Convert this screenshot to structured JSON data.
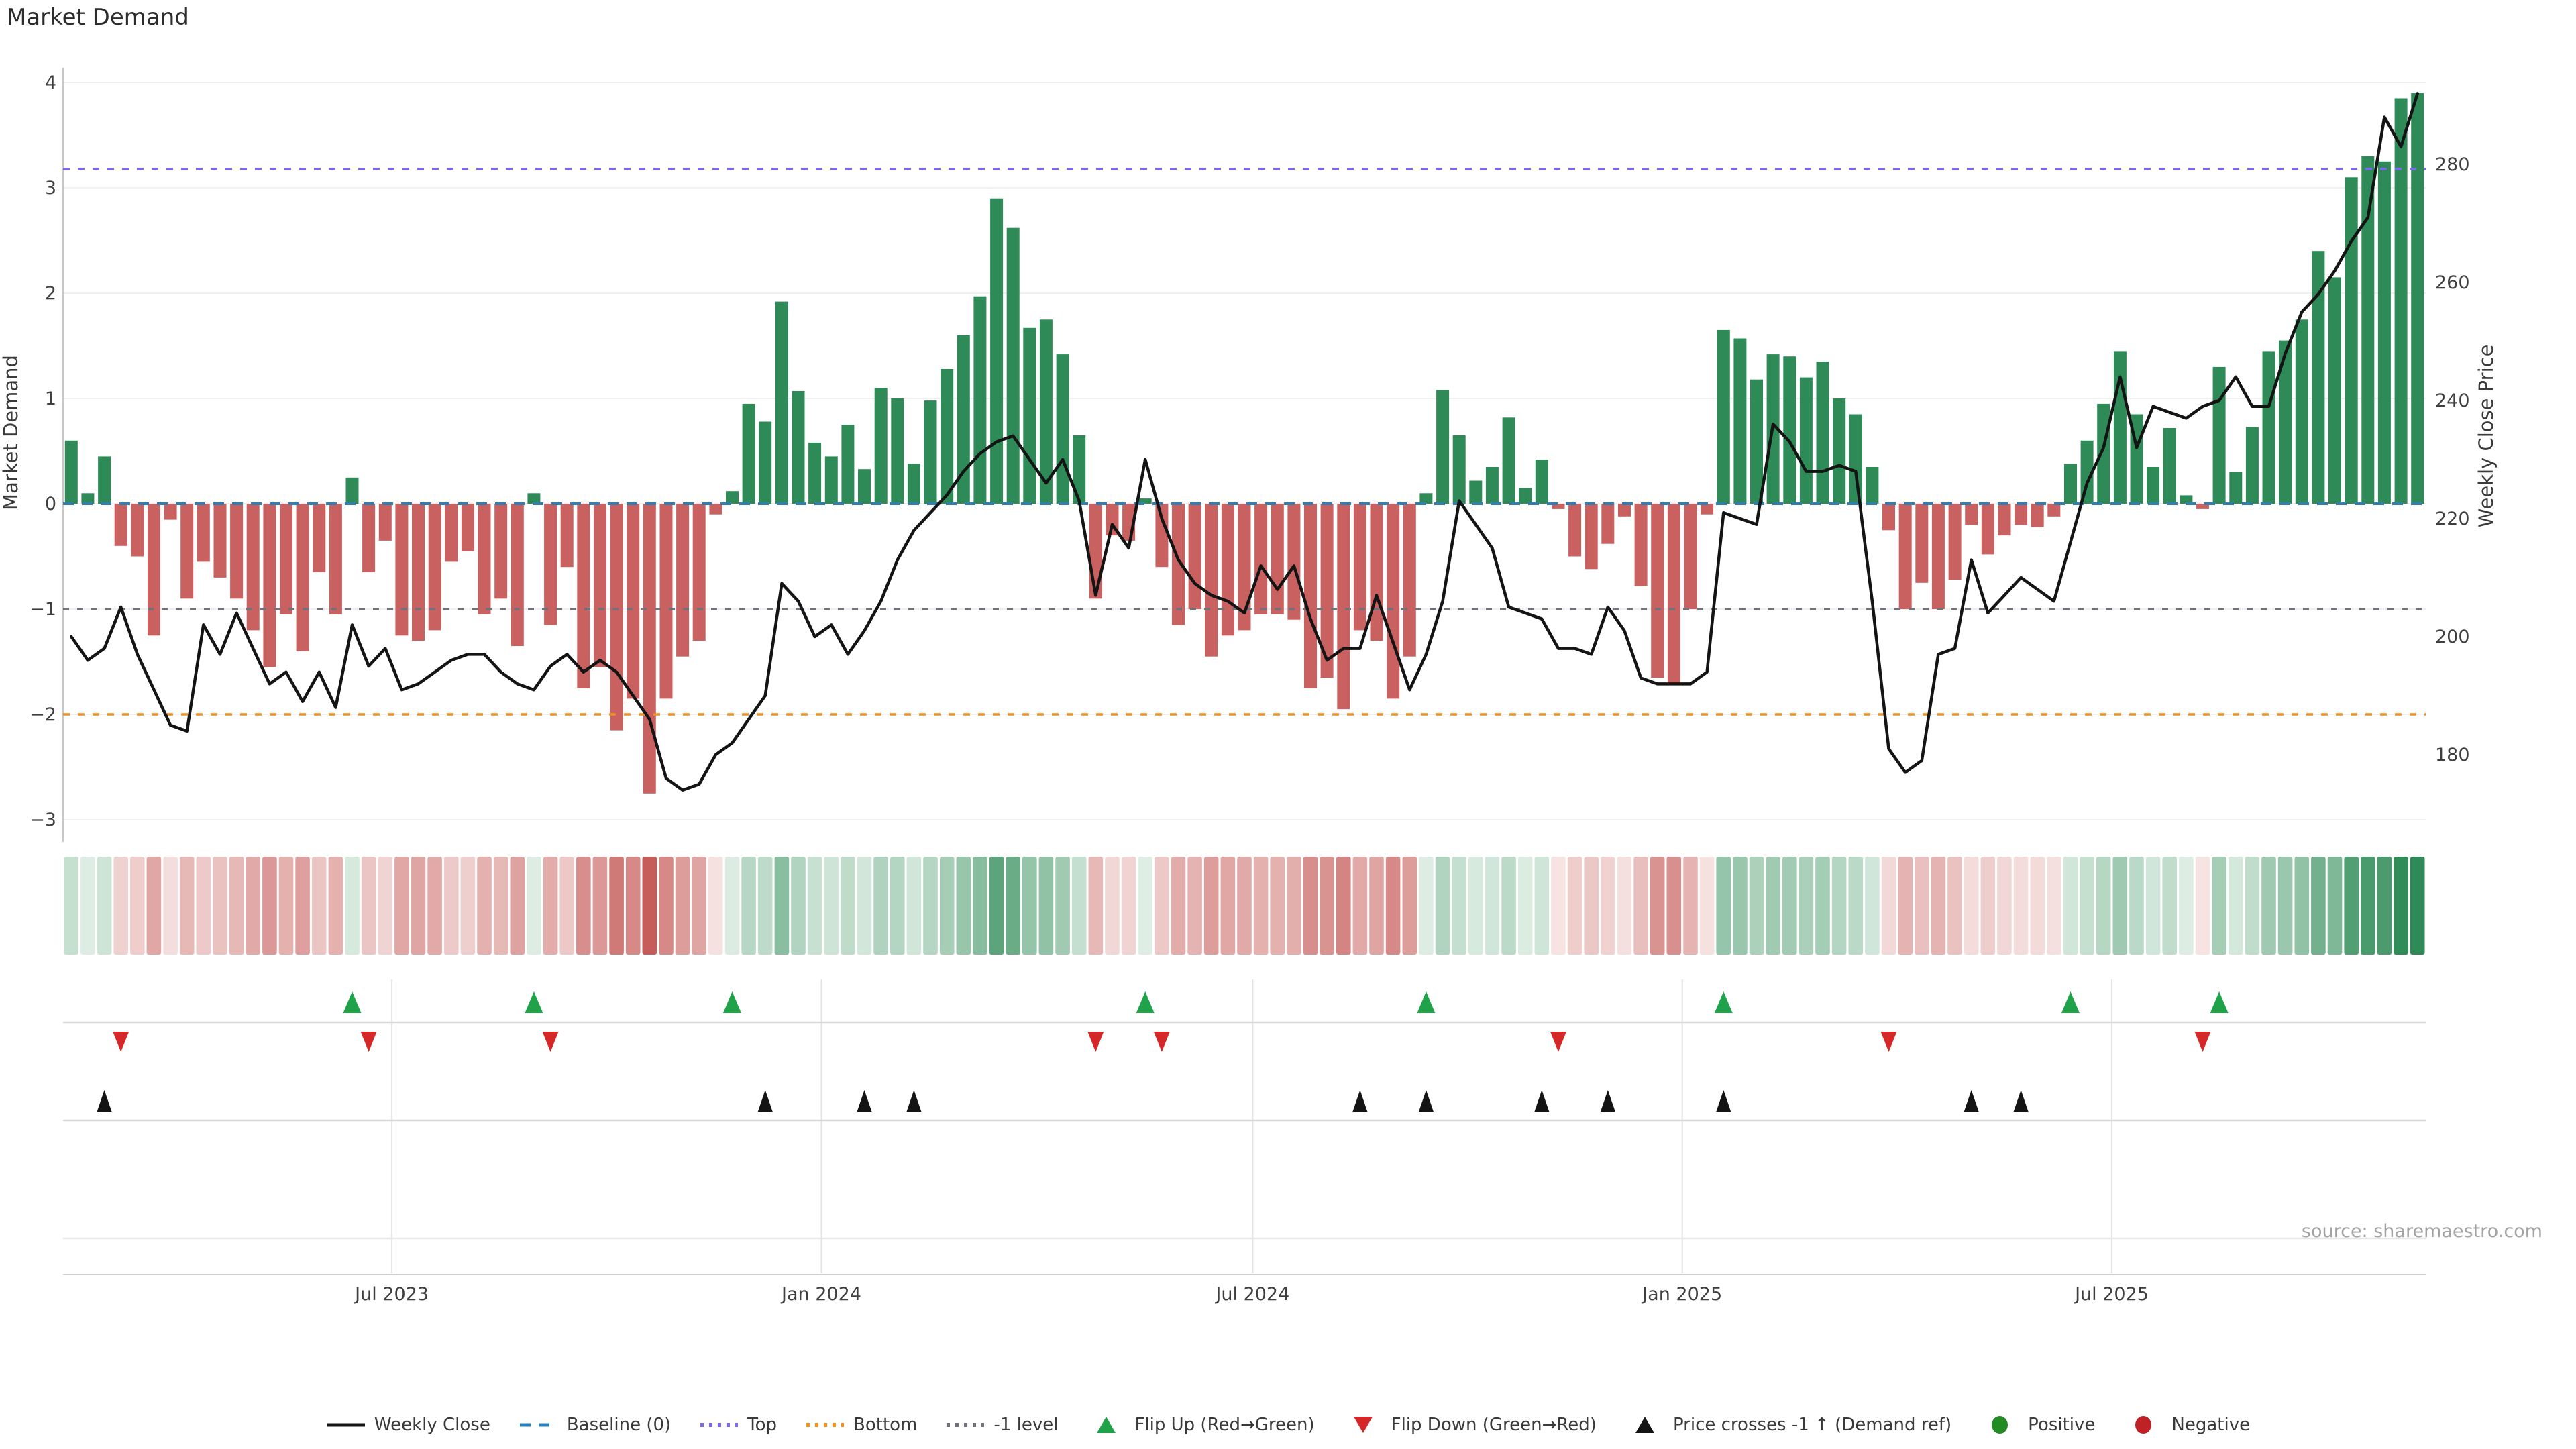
{
  "title": "Market Demand",
  "source": "source: sharemaestro.com",
  "axes": {
    "left": {
      "label": "Market Demand",
      "ticks": [
        4,
        3,
        2,
        1,
        0,
        -1,
        -2,
        -3
      ]
    },
    "right": {
      "label": "Weekly Close Price",
      "ticks": [
        280,
        260,
        240,
        220,
        200,
        180
      ]
    }
  },
  "x_axis": {
    "ticks": [
      {
        "label": "Jul 2023",
        "week": 19.4
      },
      {
        "label": "Jan 2024",
        "week": 45.4
      },
      {
        "label": "Jul 2024",
        "week": 71.5
      },
      {
        "label": "Jan 2025",
        "week": 97.5
      },
      {
        "label": "Jul 2025",
        "week": 123.5
      }
    ]
  },
  "colors": {
    "positive_bar": "#2e8b57",
    "negative_bar": "#c96161",
    "price_line": "#141414",
    "baseline": "#2e7fb8",
    "top_line": "#7b68ee",
    "bottom_line": "#f1921e",
    "minus1_line": "#72727c",
    "flip_up": "#1fa24a",
    "flip_down": "#d62728",
    "price_cross": "#141414",
    "positive_dot": "#228b22",
    "negative_dot": "#c02126",
    "grid": "#f0f0f1",
    "panel_grid": "#e3e3e3",
    "separator": "#d8d8d8",
    "tick_text": "#3f3f3f"
  },
  "legend": {
    "items": [
      {
        "id": "weekly-close",
        "label": "Weekly Close",
        "swatch": "line",
        "color": "#141414"
      },
      {
        "id": "baseline",
        "label": "Baseline (0)",
        "swatch": "dashes",
        "color": "#2e7fb8"
      },
      {
        "id": "top",
        "label": "Top",
        "swatch": "dots",
        "color": "#7b68ee"
      },
      {
        "id": "bottom",
        "label": "Bottom",
        "swatch": "dots",
        "color": "#f1921e"
      },
      {
        "id": "minus1-level",
        "label": "-1 level",
        "swatch": "dots",
        "color": "#72727c"
      },
      {
        "id": "flip-up",
        "label": "Flip Up (Red→Green)",
        "swatch": "tri-up",
        "color": "#1fa24a"
      },
      {
        "id": "flip-down",
        "label": "Flip Down (Green→Red)",
        "swatch": "tri-down",
        "color": "#d62728"
      },
      {
        "id": "price-crosses",
        "label": "Price crosses -1 ↑ (Demand ref)",
        "swatch": "tri-up",
        "color": "#141414"
      },
      {
        "id": "positive",
        "label": "Positive",
        "swatch": "circle",
        "color": "#228b22"
      },
      {
        "id": "negative",
        "label": "Negative",
        "swatch": "circle",
        "color": "#c02126"
      }
    ]
  },
  "chart_data": {
    "type": "combo",
    "weeks": 143,
    "series": [
      {
        "name": "Market Demand",
        "type": "bar",
        "axis": "left",
        "values": [
          0.6,
          0.1,
          0.45,
          -0.4,
          -0.5,
          -1.25,
          -0.15,
          -0.9,
          -0.55,
          -0.7,
          -0.9,
          -1.2,
          -1.55,
          -1.05,
          -1.4,
          -0.65,
          -1.05,
          0.25,
          -0.65,
          -0.35,
          -1.25,
          -1.3,
          -1.2,
          -0.55,
          -0.45,
          -1.05,
          -0.9,
          -1.35,
          0.1,
          -1.15,
          -0.6,
          -1.75,
          -1.55,
          -2.15,
          -1.85,
          -2.75,
          -1.85,
          -1.45,
          -1.3,
          -0.1,
          0.12,
          0.95,
          0.78,
          1.92,
          1.07,
          0.58,
          0.45,
          0.75,
          0.33,
          1.1,
          1.0,
          0.38,
          0.98,
          1.28,
          1.6,
          1.97,
          2.9,
          2.62,
          1.67,
          1.75,
          1.42,
          0.65,
          -0.9,
          -0.3,
          -0.35,
          0.05,
          -0.6,
          -1.15,
          -1.0,
          -1.45,
          -1.25,
          -1.2,
          -1.05,
          -1.05,
          -1.1,
          -1.75,
          -1.65,
          -1.95,
          -1.2,
          -1.3,
          -1.85,
          -1.45,
          0.1,
          1.08,
          0.65,
          0.22,
          0.35,
          0.82,
          0.15,
          0.42,
          -0.05,
          -0.5,
          -0.62,
          -0.38,
          -0.12,
          -0.78,
          -1.65,
          -1.72,
          -1.0,
          -0.1,
          1.65,
          1.57,
          1.18,
          1.42,
          1.4,
          1.2,
          1.35,
          1.0,
          0.85,
          0.35,
          -0.25,
          -1.0,
          -0.75,
          -1.0,
          -0.72,
          -0.2,
          -0.48,
          -0.3,
          -0.2,
          -0.22,
          -0.12,
          0.38,
          0.6,
          0.95,
          1.45,
          0.85,
          0.35,
          0.72,
          0.08,
          -0.05,
          1.3,
          0.3,
          0.73,
          1.45,
          1.55,
          1.75,
          2.4,
          2.15,
          3.1,
          3.3,
          3.25,
          3.85,
          3.9
        ]
      },
      {
        "name": "Weekly Close",
        "type": "line",
        "axis": "right",
        "values": [
          200,
          196,
          198,
          205,
          197,
          191,
          185,
          184,
          202,
          197,
          204,
          198,
          192,
          194,
          189,
          194,
          188,
          202,
          195,
          198,
          191,
          192,
          194,
          196,
          197,
          197,
          194,
          192,
          191,
          195,
          197,
          194,
          196,
          194,
          190,
          186,
          176,
          174,
          175,
          180,
          182,
          186,
          190,
          209,
          206,
          200,
          202,
          197,
          201,
          206,
          213,
          218,
          221,
          224,
          228,
          231,
          233,
          234,
          230,
          226,
          230,
          223,
          207,
          219,
          215,
          230,
          220,
          213,
          209,
          207,
          206,
          204,
          212,
          208,
          212,
          203,
          196,
          198,
          198,
          207,
          199,
          191,
          197,
          206,
          223,
          219,
          215,
          205,
          204,
          203,
          198,
          198,
          197,
          205,
          201,
          193,
          192,
          192,
          192,
          194,
          221,
          220,
          219,
          236,
          233,
          228,
          228,
          229,
          228,
          206,
          181,
          177,
          179,
          197,
          198,
          213,
          204,
          207,
          210,
          208,
          206,
          216,
          226,
          232,
          244,
          232,
          239,
          238,
          237,
          239,
          240,
          244,
          239,
          239,
          248,
          255,
          258,
          262,
          267,
          271,
          288,
          283,
          292
        ]
      }
    ],
    "ref_lines": {
      "baseline": 0,
      "top": 3.18,
      "bottom": -2,
      "minus1_level": -1
    },
    "markers": {
      "flip_up": [
        17,
        28,
        40,
        65,
        82,
        100,
        121,
        130
      ],
      "flip_down": [
        3,
        18,
        29,
        62,
        66,
        90,
        110,
        129
      ],
      "price_cross": [
        2,
        42,
        48,
        51,
        78,
        82,
        89,
        93,
        100,
        115,
        118
      ]
    },
    "heatmap": {
      "note": "strip mirrors Market Demand bar values, color intensity = |value|"
    },
    "y_left_range": [
      -3.2,
      4.15
    ],
    "y_right_range": [
      176,
      295
    ],
    "grid": true,
    "legend_position": "bottom"
  }
}
